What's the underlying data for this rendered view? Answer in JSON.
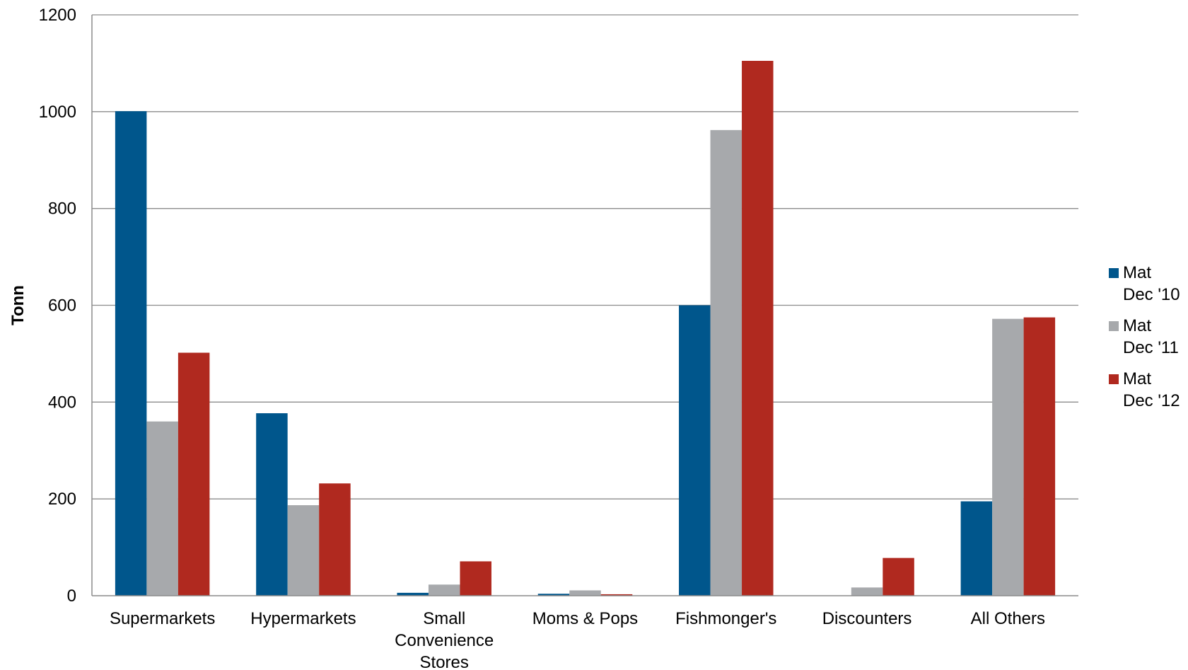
{
  "chart_data": {
    "type": "bar",
    "title": "",
    "xlabel": "",
    "ylabel": "Tonn",
    "ylim": [
      0,
      1200
    ],
    "yticks": [
      0,
      200,
      400,
      600,
      800,
      1000,
      1200
    ],
    "grid": true,
    "legend_position": "right",
    "categories": [
      [
        "Supermarkets"
      ],
      [
        "Hypermarkets"
      ],
      [
        "Small",
        "Convenience",
        "Stores"
      ],
      [
        "Moms & Pops"
      ],
      [
        "Fishmonger's"
      ],
      [
        "Discounters"
      ],
      [
        "All Others"
      ]
    ],
    "series": [
      {
        "name": [
          "Mat",
          "Dec '10"
        ],
        "color": "#00568C",
        "values": [
          1001,
          377,
          6,
          4,
          600,
          0,
          195
        ]
      },
      {
        "name": [
          "Mat",
          "Dec '11"
        ],
        "color": "#A7A9AC",
        "values": [
          360,
          187,
          23,
          11,
          962,
          17,
          572
        ]
      },
      {
        "name": [
          "Mat",
          "Dec '12"
        ],
        "color": "#B0291F",
        "values": [
          502,
          232,
          71,
          3,
          1105,
          78,
          575
        ]
      }
    ]
  }
}
